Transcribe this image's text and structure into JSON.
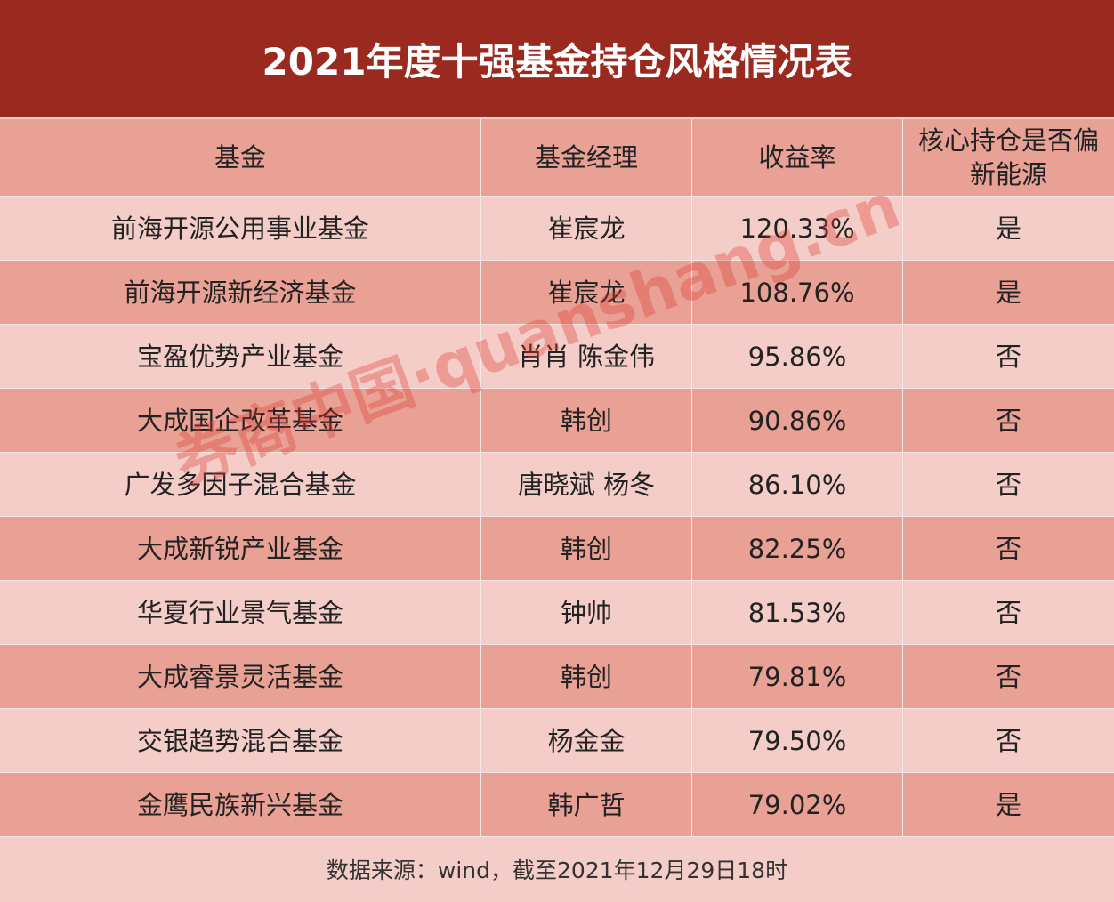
{
  "title": "2021年度十强基金持仓风格情况表",
  "table": {
    "header": [
      "基金",
      "基金经理",
      "收益率",
      "核心持仓是否偏新能源"
    ],
    "rows": [
      [
        "前海开源公用事业基金",
        "崔宸龙",
        "120.33%",
        "是"
      ],
      [
        "前海开源新经济基金",
        "崔宸龙",
        "108.76%",
        "是"
      ],
      [
        "宝盈优势产业基金",
        "肖肖 陈金伟",
        "95.86%",
        "否"
      ],
      [
        "大成国企改革基金",
        "韩创",
        "90.86%",
        "否"
      ],
      [
        "广发多因子混合基金",
        "唐晓斌 杨冬",
        "86.10%",
        "否"
      ],
      [
        "大成新锐产业基金",
        "韩创",
        "82.25%",
        "否"
      ],
      [
        "华夏行业景气基金",
        "钟帅",
        "81.53%",
        "否"
      ],
      [
        "大成睿景灵活基金",
        "韩创",
        "79.81%",
        "否"
      ],
      [
        "交银趋势混合基金",
        "杨金金",
        "79.50%",
        "否"
      ],
      [
        "金鹰民族新兴基金",
        "韩广哲",
        "79.02%",
        "是"
      ]
    ]
  },
  "footer": "数据来源：wind，截至2021年12月29日18时",
  "watermark": "券商中国·quanshang.cn"
}
